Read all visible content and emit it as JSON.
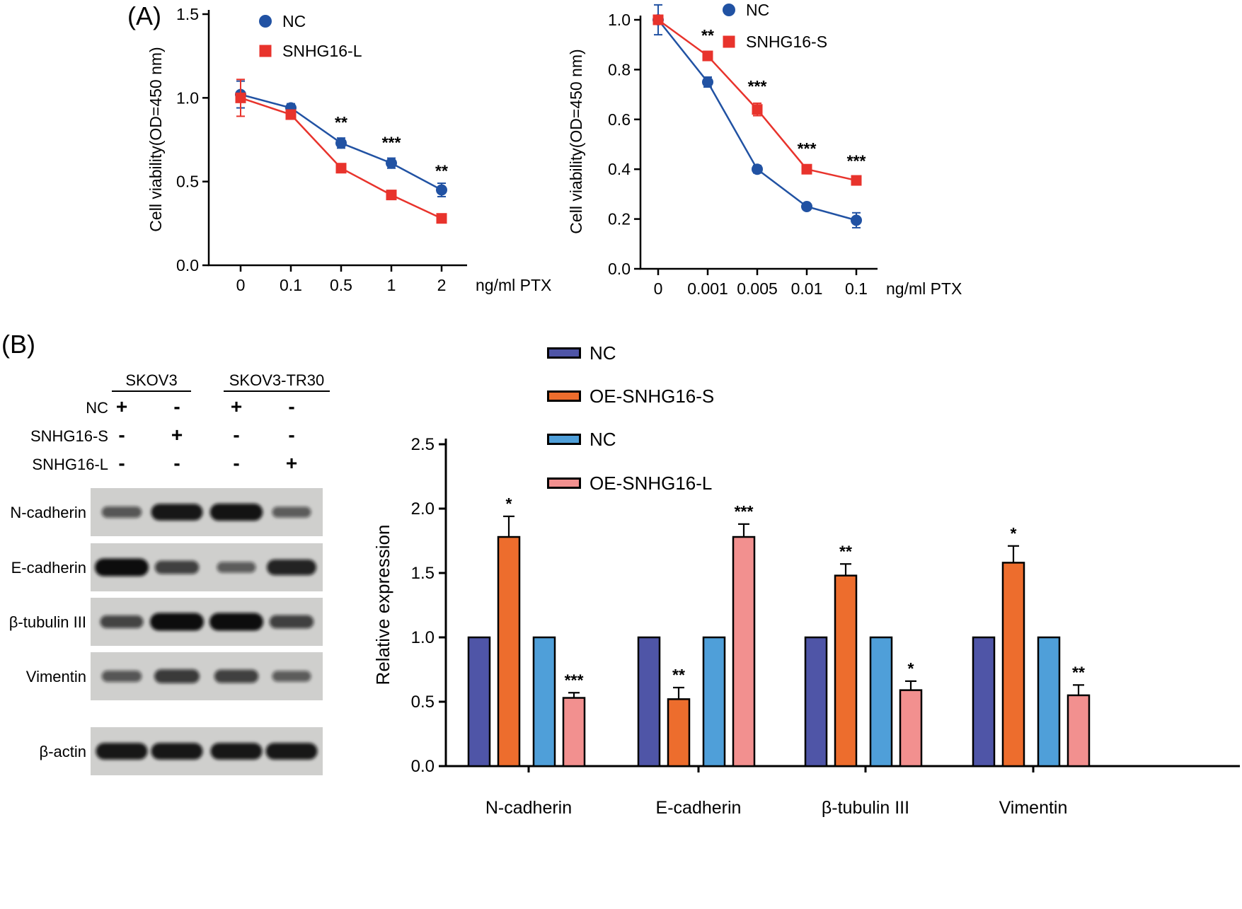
{
  "panels": {
    "a_label": "(A)",
    "b_label": "(B)"
  },
  "blot": {
    "headers": [
      "SKOV3",
      "SKOV3-TR30"
    ],
    "conditions": [
      {
        "label": "NC",
        "signs": [
          "+",
          "-",
          "+",
          "-"
        ]
      },
      {
        "label": "SNHG16-S",
        "signs": [
          "-",
          "+",
          "-",
          "-"
        ]
      },
      {
        "label": "SNHG16-L",
        "signs": [
          "-",
          "-",
          "-",
          "+"
        ]
      }
    ],
    "rows": [
      {
        "label": "N-cadherin",
        "bands": [
          0.35,
          0.9,
          0.95,
          0.3
        ]
      },
      {
        "label": "E-cadherin",
        "bands": [
          1.0,
          0.55,
          0.3,
          0.8
        ]
      },
      {
        "label": "β-tubulin III",
        "bands": [
          0.5,
          1.0,
          1.0,
          0.55
        ]
      },
      {
        "label": "Vimentin",
        "bands": [
          0.35,
          0.6,
          0.55,
          0.3
        ]
      },
      {
        "label": "β-actin",
        "bands": [
          0.9,
          0.9,
          0.9,
          0.9
        ]
      }
    ]
  },
  "chart_data": [
    {
      "type": "line",
      "panel": "A-left",
      "x_categories": [
        "0",
        "0.1",
        "0.5",
        "1",
        "2"
      ],
      "x_axis_suffix": "ng/ml PTX",
      "ylabel": "Cell viability(OD=450 nm)",
      "ylim": [
        0,
        1.5
      ],
      "yticks": [
        "0.0",
        "0.5",
        "1.0",
        "1.5"
      ],
      "legend_position": "top-left-inside",
      "series": [
        {
          "name": "NC",
          "marker": "circle",
          "color": "#2152a3",
          "values": [
            1.02,
            0.94,
            0.73,
            0.61,
            0.45
          ],
          "errors": [
            0.08,
            0.025,
            0.03,
            0.03,
            0.04
          ]
        },
        {
          "name": "SNHG16-L",
          "marker": "square",
          "color": "#e8332c",
          "values": [
            1.0,
            0.9,
            0.58,
            0.42,
            0.28
          ],
          "errors": [
            0.11,
            0.025,
            0.025,
            0.02,
            0.02
          ]
        }
      ],
      "annotations": [
        {
          "x": 2,
          "y": 0.82,
          "text": "**"
        },
        {
          "x": 3,
          "y": 0.7,
          "text": "***"
        },
        {
          "x": 4,
          "y": 0.53,
          "text": "**"
        }
      ]
    },
    {
      "type": "line",
      "panel": "A-right",
      "x_categories": [
        "0",
        "0.001",
        "0.005",
        "0.01",
        "0.1"
      ],
      "x_axis_suffix": "ng/ml PTX",
      "ylabel": "Cell viability(OD=450 nm)",
      "ylim": [
        0,
        1.0
      ],
      "yticks": [
        "0.0",
        "0.2",
        "0.4",
        "0.6",
        "0.8",
        "1.0"
      ],
      "legend_position": "top-center-inside",
      "series": [
        {
          "name": "NC",
          "marker": "circle",
          "color": "#2152a3",
          "values": [
            1.0,
            0.75,
            0.4,
            0.25,
            0.195
          ],
          "errors": [
            0.06,
            0.02,
            0.015,
            0.01,
            0.03
          ]
        },
        {
          "name": "SNHG16-S",
          "marker": "square",
          "color": "#e8332c",
          "values": [
            1.0,
            0.855,
            0.64,
            0.4,
            0.355
          ],
          "errors": [
            0,
            0.015,
            0.025,
            0.015,
            0.015
          ]
        }
      ],
      "annotations": [
        {
          "x": 1,
          "y": 0.915,
          "text": "**"
        },
        {
          "x": 2,
          "y": 0.71,
          "text": "***"
        },
        {
          "x": 3,
          "y": 0.46,
          "text": "***"
        },
        {
          "x": 4,
          "y": 0.41,
          "text": "***"
        }
      ]
    },
    {
      "type": "bar",
      "panel": "B-right",
      "categories": [
        "N-cadherin",
        "E-cadherin",
        "β-tubulin III",
        "Vimentin"
      ],
      "ylabel": "Relative expression",
      "ylim": [
        0,
        2.5
      ],
      "yticks": [
        "0.0",
        "0.5",
        "1.0",
        "1.5",
        "2.0",
        "2.5"
      ],
      "legend_position": "top-left-outside",
      "series": [
        {
          "name": "NC",
          "color": "#4f55a7",
          "values": [
            1,
            1,
            1,
            1
          ],
          "errors": [
            0,
            0,
            0,
            0
          ],
          "sig": [
            "",
            "",
            "",
            ""
          ]
        },
        {
          "name": "OE-SNHG16-S",
          "color": "#ed6d2d",
          "values": [
            1.78,
            0.52,
            1.48,
            1.58
          ],
          "errors": [
            0.16,
            0.09,
            0.09,
            0.13
          ],
          "sig": [
            "*",
            "**",
            "**",
            "*"
          ]
        },
        {
          "name": "NC",
          "color": "#4f9fd9",
          "values": [
            1,
            1,
            1,
            1
          ],
          "errors": [
            0,
            0,
            0,
            0
          ],
          "sig": [
            "",
            "",
            "",
            ""
          ]
        },
        {
          "name": "OE-SNHG16-L",
          "color": "#f2908f",
          "values": [
            0.53,
            1.78,
            0.59,
            0.55
          ],
          "errors": [
            0.04,
            0.1,
            0.07,
            0.08
          ],
          "sig": [
            "***",
            "***",
            "*",
            "**"
          ]
        }
      ]
    }
  ]
}
